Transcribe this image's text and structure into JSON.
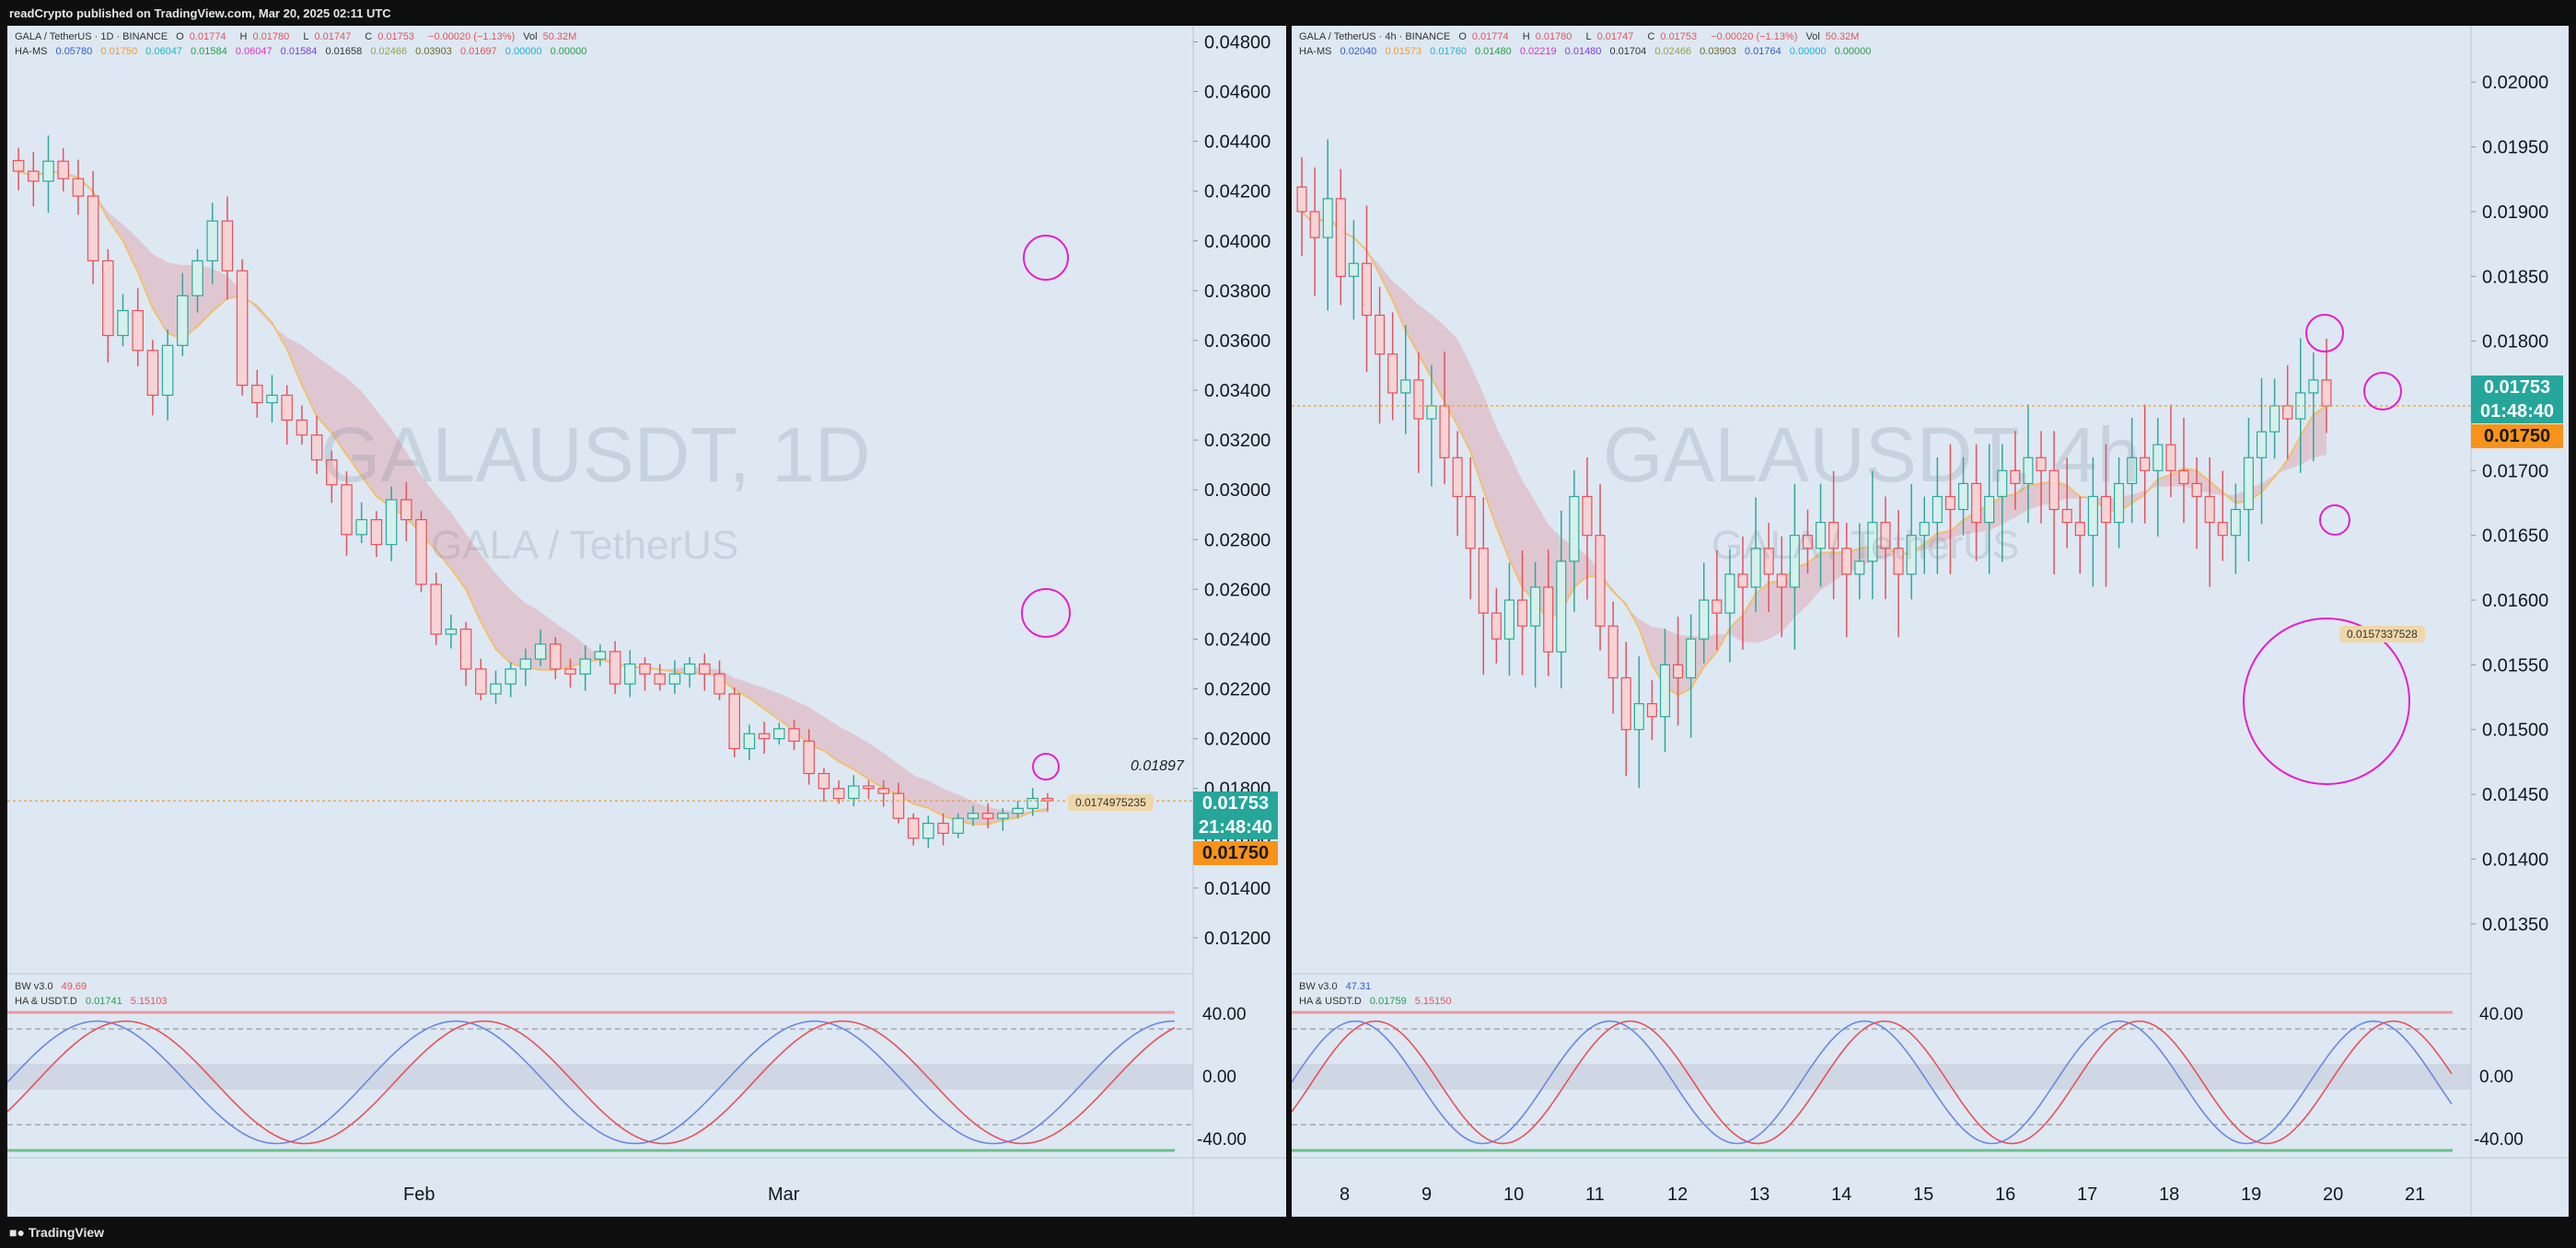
{
  "header": {
    "published": "readCrypto published on TradingView.com, Mar 20, 2025 02:11 UTC"
  },
  "footer": {
    "brand": "TradingView"
  },
  "colors": {
    "bg": "#dde8f3",
    "up": "#2fa89a",
    "down": "#e8515a",
    "axis_text": "#131722",
    "olive": "#9aa04a",
    "yellow": "#e8e87a",
    "orange": "#f59a2e",
    "magenta": "#e81fc8",
    "price_badge": "#26a69a",
    "orange_badge": "#f7931a"
  },
  "left": {
    "legend1": {
      "title": "GALA / TetherUS · 1D · BINANCE",
      "o_label": "O",
      "o_val": "0.01774",
      "h_label": "H",
      "h_val": "0.01780",
      "l_label": "L",
      "l_val": "0.01747",
      "c_label": "C",
      "c_val": "0.01753",
      "chg": "−0.00020 (−1.13%)",
      "vol_label": "Vol",
      "vol_val": "50.32M"
    },
    "legend2": {
      "name": "HA-MS",
      "values": [
        "0.05780",
        "0.01750",
        "0.06047",
        "0.01584",
        "0.06047",
        "0.01584",
        "0.01658",
        "0.02466",
        "0.03903",
        "0.01697",
        "0.00000",
        "0.00000"
      ]
    },
    "watermark": {
      "symbol": "GALAUSDT, 1D",
      "name": "GALA / TetherUS"
    },
    "price_badge": {
      "price": "0.01753",
      "timer": "21:48:40"
    },
    "orange_badge": "0.01750",
    "annotation_1897": "0.01897",
    "label_tag": "0.0174975235",
    "osc_legend1": {
      "name": "BW v3.0",
      "val": "49.69"
    },
    "osc_legend2": {
      "name": "HA & USDT.D",
      "v1": "0.01741",
      "v2": "5.15103"
    },
    "osc_ticks": [
      "40.00",
      "0.00",
      "-40.00"
    ],
    "x_labels": [
      "Feb",
      "Mar"
    ]
  },
  "right": {
    "legend1": {
      "title": "GALA / TetherUS · 4h · BINANCE",
      "o_label": "O",
      "o_val": "0.01774",
      "h_label": "H",
      "h_val": "0.01780",
      "l_label": "L",
      "l_val": "0.01747",
      "c_label": "C",
      "c_val": "0.01753",
      "chg": "−0.00020 (−1.13%)",
      "vol_label": "Vol",
      "vol_val": "50.32M"
    },
    "legend2": {
      "name": "HA-MS",
      "values": [
        "0.02040",
        "0.01573",
        "0.01760",
        "0.01480",
        "0.02219",
        "0.01480",
        "0.01704",
        "0.02466",
        "0.03903",
        "0.01764",
        "0.00000",
        "0.00000"
      ]
    },
    "watermark": {
      "symbol": "GALAUSDT, 4h",
      "name": "GALA / TetherUS"
    },
    "price_badge": {
      "price": "0.01753",
      "timer": "01:48:40"
    },
    "orange_badge": "0.01750",
    "label_tag": "0.0157337528",
    "osc_legend1": {
      "name": "BW v3.0",
      "val": "47.31"
    },
    "osc_legend2": {
      "name": "HA & USDT.D",
      "v1": "0.01759",
      "v2": "5.15150"
    },
    "osc_ticks": [
      "40.00",
      "0.00",
      "-40.00"
    ],
    "x_labels": [
      "8",
      "9",
      "10",
      "11",
      "12",
      "13",
      "14",
      "15",
      "16",
      "17",
      "18",
      "19",
      "20",
      "21"
    ]
  },
  "chart_data": [
    {
      "type": "candlestick",
      "title": "GALA / TetherUS · 1D · BINANCE",
      "ylim": [
        0.011,
        0.0482
      ],
      "y_ticks": [
        "0.04800",
        "0.04600",
        "0.04400",
        "0.04200",
        "0.04000",
        "0.03800",
        "0.03600",
        "0.03400",
        "0.03200",
        "0.03000",
        "0.02800",
        "0.02600",
        "0.02400",
        "0.02200",
        "0.02000",
        "0.01800",
        "0.01600",
        "0.01400",
        "0.01200"
      ],
      "x_ticks": [
        "Feb",
        "Mar"
      ],
      "close": [
        0.0428,
        0.0424,
        0.0432,
        0.0425,
        0.0418,
        0.0392,
        0.0362,
        0.0372,
        0.0356,
        0.0338,
        0.0358,
        0.0378,
        0.0392,
        0.0408,
        0.0388,
        0.0342,
        0.0335,
        0.0338,
        0.0328,
        0.0322,
        0.0312,
        0.0302,
        0.0282,
        0.0288,
        0.0278,
        0.0296,
        0.0288,
        0.0262,
        0.0242,
        0.0244,
        0.0228,
        0.0218,
        0.0222,
        0.0228,
        0.0232,
        0.0238,
        0.0228,
        0.0226,
        0.0232,
        0.0235,
        0.0222,
        0.023,
        0.0226,
        0.0222,
        0.0226,
        0.023,
        0.0226,
        0.0218,
        0.0196,
        0.0202,
        0.02,
        0.0204,
        0.0199,
        0.0186,
        0.018,
        0.0176,
        0.0181,
        0.018,
        0.0178,
        0.0168,
        0.016,
        0.0166,
        0.0162,
        0.0168,
        0.017,
        0.0168,
        0.017,
        0.0172,
        0.0176,
        0.0175
      ]
    },
    {
      "type": "candlestick",
      "title": "GALA / TetherUS · 4h · BINANCE",
      "ylim": [
        0.0132,
        0.02035
      ],
      "y_ticks": [
        "0.02000",
        "0.01950",
        "0.01900",
        "0.01850",
        "0.01800",
        "0.01750",
        "0.01700",
        "0.01650",
        "0.01600",
        "0.01550",
        "0.01500",
        "0.01450",
        "0.01400",
        "0.01350"
      ],
      "x_ticks": [
        "8",
        "9",
        "10",
        "11",
        "12",
        "13",
        "14",
        "15",
        "16",
        "17",
        "18",
        "19",
        "20",
        "21"
      ],
      "close": [
        0.019,
        0.0188,
        0.0191,
        0.0185,
        0.0186,
        0.0182,
        0.0179,
        0.0176,
        0.0177,
        0.0174,
        0.0175,
        0.0171,
        0.0168,
        0.0164,
        0.0159,
        0.0157,
        0.016,
        0.0158,
        0.0161,
        0.0156,
        0.0163,
        0.0168,
        0.0165,
        0.0158,
        0.0154,
        0.015,
        0.0152,
        0.0151,
        0.0155,
        0.0154,
        0.0157,
        0.016,
        0.0159,
        0.0162,
        0.0161,
        0.0164,
        0.0162,
        0.0161,
        0.0165,
        0.0164,
        0.0166,
        0.0164,
        0.0162,
        0.0163,
        0.0166,
        0.0164,
        0.0162,
        0.0165,
        0.0166,
        0.0168,
        0.0167,
        0.0169,
        0.0166,
        0.0168,
        0.017,
        0.0169,
        0.0171,
        0.017,
        0.0167,
        0.0166,
        0.0165,
        0.0168,
        0.0166,
        0.0169,
        0.0171,
        0.017,
        0.0172,
        0.017,
        0.0169,
        0.0168,
        0.0166,
        0.0165,
        0.0167,
        0.0171,
        0.0173,
        0.0175,
        0.0174,
        0.0176,
        0.0177,
        0.0175
      ]
    }
  ]
}
